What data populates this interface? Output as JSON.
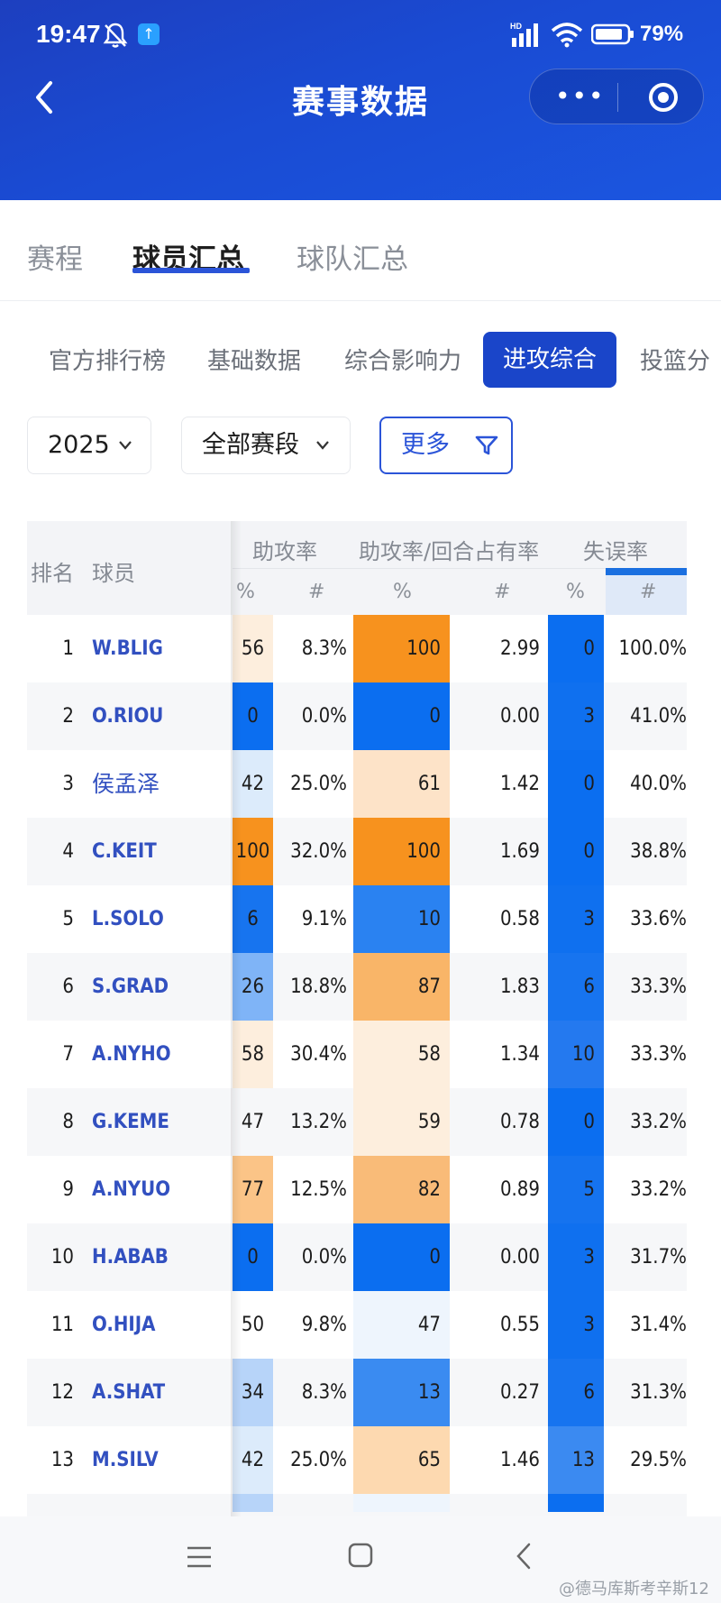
{
  "status_bar": {
    "time": "19:47",
    "notif_badge": "↑",
    "battery": "79%"
  },
  "header": {
    "title": "赛事数据",
    "menu_dots": "•••"
  },
  "tabs": [
    {
      "label": "赛程"
    },
    {
      "label": "球员汇总"
    },
    {
      "label": "球队汇总"
    }
  ],
  "subtabs": [
    {
      "label": "官方排行榜"
    },
    {
      "label": "基础数据"
    },
    {
      "label": "综合影响力"
    },
    {
      "label": "进攻综合"
    },
    {
      "label": "投篮分"
    }
  ],
  "filters": {
    "season": "2025",
    "stage": "全部赛段",
    "more": "更多"
  },
  "table": {
    "headers": {
      "rank": "排名",
      "player": "球员",
      "group1": "助攻率",
      "group2": "助攻率/回合占有率",
      "group3": "失误率",
      "pct": "%",
      "num": "#"
    },
    "rows": [
      {
        "rank": "1",
        "name": "W.BLIG",
        "p1": "56",
        "n1": "8.3%",
        "p2": "100",
        "n2": "2.99",
        "p3": "0",
        "n3": "100.0%"
      },
      {
        "rank": "2",
        "name": "O.RIOU",
        "p1": "0",
        "n1": "0.0%",
        "p2": "0",
        "n2": "0.00",
        "p3": "3",
        "n3": "41.0%"
      },
      {
        "rank": "3",
        "name": "侯孟泽",
        "p1": "42",
        "n1": "25.0%",
        "p2": "61",
        "n2": "1.42",
        "p3": "0",
        "n3": "40.0%"
      },
      {
        "rank": "4",
        "name": "C.KEIT",
        "p1": "100",
        "n1": "32.0%",
        "p2": "100",
        "n2": "1.69",
        "p3": "0",
        "n3": "38.8%"
      },
      {
        "rank": "5",
        "name": "L.SOLO",
        "p1": "6",
        "n1": "9.1%",
        "p2": "10",
        "n2": "0.58",
        "p3": "3",
        "n3": "33.6%"
      },
      {
        "rank": "6",
        "name": "S.GRAD",
        "p1": "26",
        "n1": "18.8%",
        "p2": "87",
        "n2": "1.83",
        "p3": "6",
        "n3": "33.3%"
      },
      {
        "rank": "7",
        "name": "A.NYHO",
        "p1": "58",
        "n1": "30.4%",
        "p2": "58",
        "n2": "1.34",
        "p3": "10",
        "n3": "33.3%"
      },
      {
        "rank": "8",
        "name": "G.KEME",
        "p1": "47",
        "n1": "13.2%",
        "p2": "59",
        "n2": "0.78",
        "p3": "0",
        "n3": "33.2%"
      },
      {
        "rank": "9",
        "name": "A.NYUO",
        "p1": "77",
        "n1": "12.5%",
        "p2": "82",
        "n2": "0.89",
        "p3": "5",
        "n3": "33.2%"
      },
      {
        "rank": "10",
        "name": "H.ABAB",
        "p1": "0",
        "n1": "0.0%",
        "p2": "0",
        "n2": "0.00",
        "p3": "3",
        "n3": "31.7%"
      },
      {
        "rank": "11",
        "name": "O.HIJA",
        "p1": "50",
        "n1": "9.8%",
        "p2": "47",
        "n2": "0.55",
        "p3": "3",
        "n3": "31.4%"
      },
      {
        "rank": "12",
        "name": "A.SHAT",
        "p1": "34",
        "n1": "8.3%",
        "p2": "13",
        "n2": "0.27",
        "p3": "6",
        "n3": "31.3%"
      },
      {
        "rank": "13",
        "name": "M.SILV",
        "p1": "42",
        "n1": "25.0%",
        "p2": "65",
        "n2": "1.46",
        "p3": "13",
        "n3": "29.5%"
      }
    ]
  },
  "watermark": "@德马库斯考辛斯12",
  "colors": {
    "header_blue": "#1a4bd3",
    "active_tab": "#1a45c9",
    "link_blue": "#3250c0",
    "hot": "#f7921e",
    "cold": "#0b6ef0"
  }
}
